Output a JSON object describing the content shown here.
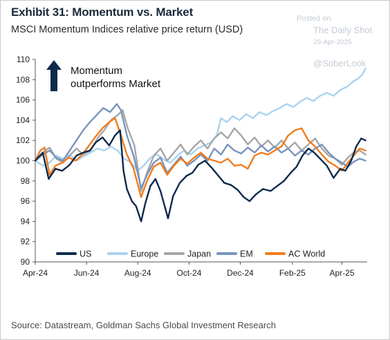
{
  "header": {
    "title": "Exhibit 31: Momentum vs. Market",
    "subtitle": "MSCI Momentum Indices relative price return (USD)"
  },
  "watermark": {
    "posted_on": "Posted on",
    "site": "The Daily Shot",
    "date": "29-Apr-2025",
    "handle": "@SoberLook"
  },
  "footer": {
    "source": "Source: Datastream, Goldman Sachs Global Investment Research"
  },
  "chart_data": {
    "type": "line",
    "ylim": [
      90,
      110
    ],
    "yticks": [
      90,
      92,
      94,
      96,
      98,
      100,
      102,
      104,
      106,
      108,
      110
    ],
    "xlim": [
      "2024-04-01",
      "2025-05-01"
    ],
    "xticks": [
      {
        "date": "2024-04-01",
        "label": "Apr-24"
      },
      {
        "date": "2024-06-01",
        "label": "Jun-24"
      },
      {
        "date": "2024-08-01",
        "label": "Aug-24"
      },
      {
        "date": "2024-10-01",
        "label": "Oct-24"
      },
      {
        "date": "2024-12-01",
        "label": "Dec-24"
      },
      {
        "date": "2025-02-01",
        "label": "Feb-25"
      },
      {
        "date": "2025-04-01",
        "label": "Apr-25"
      }
    ],
    "annotation": {
      "line1": "Momentum",
      "line2": "outperforms  Market",
      "arrow_color": "#0d2a4d"
    },
    "legend_position": "bottom",
    "series": [
      {
        "name": "US",
        "color": "#0d2a4d",
        "points": [
          [
            "2024-04-01",
            100.0
          ],
          [
            "2024-04-10",
            100.8
          ],
          [
            "2024-04-17",
            98.2
          ],
          [
            "2024-04-25",
            99.2
          ],
          [
            "2024-05-03",
            99.0
          ],
          [
            "2024-05-12",
            99.6
          ],
          [
            "2024-05-20",
            100.5
          ],
          [
            "2024-05-28",
            100.8
          ],
          [
            "2024-06-05",
            101.0
          ],
          [
            "2024-06-12",
            101.8
          ],
          [
            "2024-06-20",
            102.3
          ],
          [
            "2024-06-28",
            101.5
          ],
          [
            "2024-07-05",
            102.5
          ],
          [
            "2024-07-11",
            103.0
          ],
          [
            "2024-07-15",
            99.0
          ],
          [
            "2024-07-19",
            97.2
          ],
          [
            "2024-07-25",
            96.0
          ],
          [
            "2024-07-30",
            95.5
          ],
          [
            "2024-08-05",
            94.0
          ],
          [
            "2024-08-10",
            95.8
          ],
          [
            "2024-08-16",
            97.5
          ],
          [
            "2024-08-22",
            98.2
          ],
          [
            "2024-08-28",
            97.0
          ],
          [
            "2024-09-03",
            95.2
          ],
          [
            "2024-09-06",
            94.3
          ],
          [
            "2024-09-12",
            96.5
          ],
          [
            "2024-09-20",
            97.8
          ],
          [
            "2024-09-28",
            98.5
          ],
          [
            "2024-10-05",
            98.8
          ],
          [
            "2024-10-12",
            99.6
          ],
          [
            "2024-10-20",
            100.0
          ],
          [
            "2024-10-28",
            99.3
          ],
          [
            "2024-11-05",
            98.5
          ],
          [
            "2024-11-12",
            97.8
          ],
          [
            "2024-11-20",
            97.6
          ],
          [
            "2024-11-28",
            97.1
          ],
          [
            "2024-12-05",
            96.4
          ],
          [
            "2024-12-12",
            96.0
          ],
          [
            "2024-12-20",
            96.7
          ],
          [
            "2024-12-28",
            97.2
          ],
          [
            "2025-01-06",
            97.0
          ],
          [
            "2025-01-14",
            97.5
          ],
          [
            "2025-01-22",
            98.0
          ],
          [
            "2025-01-30",
            98.8
          ],
          [
            "2025-02-06",
            99.4
          ],
          [
            "2025-02-13",
            100.5
          ],
          [
            "2025-02-20",
            101.2
          ],
          [
            "2025-02-27",
            100.8
          ],
          [
            "2025-03-06",
            100.2
          ],
          [
            "2025-03-14",
            99.5
          ],
          [
            "2025-03-22",
            98.3
          ],
          [
            "2025-03-30",
            99.2
          ],
          [
            "2025-04-05",
            99.0
          ],
          [
            "2025-04-12",
            100.0
          ],
          [
            "2025-04-18",
            101.4
          ],
          [
            "2025-04-24",
            102.2
          ],
          [
            "2025-04-29",
            102.0
          ]
        ]
      },
      {
        "name": "Europe",
        "color": "#a9d3ef",
        "points": [
          [
            "2024-04-01",
            100.0
          ],
          [
            "2024-04-10",
            99.5
          ],
          [
            "2024-04-18",
            99.8
          ],
          [
            "2024-04-26",
            100.5
          ],
          [
            "2024-05-04",
            100.2
          ],
          [
            "2024-05-12",
            100.6
          ],
          [
            "2024-05-20",
            100.0
          ],
          [
            "2024-05-28",
            100.4
          ],
          [
            "2024-06-06",
            100.8
          ],
          [
            "2024-06-14",
            101.2
          ],
          [
            "2024-06-22",
            101.0
          ],
          [
            "2024-06-30",
            101.4
          ],
          [
            "2024-07-08",
            101.0
          ],
          [
            "2024-07-16",
            100.2
          ],
          [
            "2024-07-24",
            99.8
          ],
          [
            "2024-08-01",
            99.0
          ],
          [
            "2024-08-08",
            99.5
          ],
          [
            "2024-08-16",
            100.3
          ],
          [
            "2024-08-24",
            100.6
          ],
          [
            "2024-09-01",
            100.1
          ],
          [
            "2024-09-09",
            99.8
          ],
          [
            "2024-09-17",
            100.5
          ],
          [
            "2024-09-25",
            101.0
          ],
          [
            "2024-10-03",
            100.6
          ],
          [
            "2024-10-11",
            101.2
          ],
          [
            "2024-10-19",
            101.5
          ],
          [
            "2024-10-27",
            101.8
          ],
          [
            "2024-11-03",
            102.5
          ],
          [
            "2024-11-08",
            104.2
          ],
          [
            "2024-11-15",
            103.8
          ],
          [
            "2024-11-22",
            104.4
          ],
          [
            "2024-11-30",
            104.0
          ],
          [
            "2024-12-08",
            104.6
          ],
          [
            "2024-12-16",
            104.2
          ],
          [
            "2024-12-24",
            104.8
          ],
          [
            "2025-01-01",
            104.5
          ],
          [
            "2025-01-09",
            104.9
          ],
          [
            "2025-01-17",
            105.2
          ],
          [
            "2025-01-25",
            105.6
          ],
          [
            "2025-02-02",
            105.3
          ],
          [
            "2025-02-10",
            105.8
          ],
          [
            "2025-02-18",
            106.2
          ],
          [
            "2025-02-26",
            105.9
          ],
          [
            "2025-03-06",
            106.4
          ],
          [
            "2025-03-14",
            106.7
          ],
          [
            "2025-03-22",
            106.4
          ],
          [
            "2025-03-30",
            107.0
          ],
          [
            "2025-04-07",
            107.3
          ],
          [
            "2025-04-14",
            107.8
          ],
          [
            "2025-04-20",
            108.1
          ],
          [
            "2025-04-25",
            108.5
          ],
          [
            "2025-04-29",
            109.1
          ]
        ]
      },
      {
        "name": "Japan",
        "color": "#a6a6a6",
        "points": [
          [
            "2024-04-01",
            100.0
          ],
          [
            "2024-04-10",
            100.8
          ],
          [
            "2024-04-18",
            101.3
          ],
          [
            "2024-04-26",
            100.2
          ],
          [
            "2024-05-04",
            99.8
          ],
          [
            "2024-05-12",
            100.5
          ],
          [
            "2024-05-20",
            101.2
          ],
          [
            "2024-05-28",
            100.6
          ],
          [
            "2024-06-06",
            101.0
          ],
          [
            "2024-06-14",
            102.2
          ],
          [
            "2024-06-22",
            103.0
          ],
          [
            "2024-06-30",
            104.0
          ],
          [
            "2024-07-08",
            104.5
          ],
          [
            "2024-07-14",
            105.0
          ],
          [
            "2024-07-20",
            103.2
          ],
          [
            "2024-07-28",
            101.5
          ],
          [
            "2024-08-05",
            97.0
          ],
          [
            "2024-08-12",
            98.8
          ],
          [
            "2024-08-20",
            100.5
          ],
          [
            "2024-08-28",
            101.2
          ],
          [
            "2024-09-05",
            100.0
          ],
          [
            "2024-09-13",
            100.8
          ],
          [
            "2024-09-21",
            101.6
          ],
          [
            "2024-09-29",
            100.6
          ],
          [
            "2024-10-07",
            101.4
          ],
          [
            "2024-10-15",
            102.0
          ],
          [
            "2024-10-23",
            101.2
          ],
          [
            "2024-10-31",
            102.2
          ],
          [
            "2024-11-08",
            102.8
          ],
          [
            "2024-11-16",
            102.2
          ],
          [
            "2024-11-24",
            103.2
          ],
          [
            "2024-12-02",
            102.5
          ],
          [
            "2024-12-10",
            101.6
          ],
          [
            "2024-12-18",
            102.3
          ],
          [
            "2024-12-26",
            101.4
          ],
          [
            "2025-01-03",
            102.0
          ],
          [
            "2025-01-11",
            101.3
          ],
          [
            "2025-01-19",
            102.0
          ],
          [
            "2025-01-27",
            101.2
          ],
          [
            "2025-02-04",
            101.8
          ],
          [
            "2025-02-12",
            101.0
          ],
          [
            "2025-02-20",
            101.6
          ],
          [
            "2025-02-28",
            102.2
          ],
          [
            "2025-03-08",
            101.2
          ],
          [
            "2025-03-16",
            100.5
          ],
          [
            "2025-03-24",
            100.2
          ],
          [
            "2025-04-01",
            99.6
          ],
          [
            "2025-04-08",
            100.3
          ],
          [
            "2025-04-15",
            100.8
          ],
          [
            "2025-04-22",
            101.0
          ],
          [
            "2025-04-29",
            100.6
          ]
        ]
      },
      {
        "name": "EM",
        "color": "#7894bd",
        "points": [
          [
            "2024-04-01",
            100.0
          ],
          [
            "2024-04-10",
            100.6
          ],
          [
            "2024-04-18",
            101.0
          ],
          [
            "2024-04-26",
            100.3
          ],
          [
            "2024-05-04",
            100.0
          ],
          [
            "2024-05-12",
            101.0
          ],
          [
            "2024-05-20",
            102.0
          ],
          [
            "2024-05-28",
            103.0
          ],
          [
            "2024-06-05",
            103.8
          ],
          [
            "2024-06-13",
            104.5
          ],
          [
            "2024-06-21",
            105.2
          ],
          [
            "2024-06-29",
            104.8
          ],
          [
            "2024-07-07",
            105.6
          ],
          [
            "2024-07-12",
            105.0
          ],
          [
            "2024-07-19",
            102.5
          ],
          [
            "2024-07-27",
            100.5
          ],
          [
            "2024-08-05",
            97.3
          ],
          [
            "2024-08-12",
            98.6
          ],
          [
            "2024-08-20",
            99.8
          ],
          [
            "2024-08-28",
            100.3
          ],
          [
            "2024-09-05",
            98.8
          ],
          [
            "2024-09-13",
            99.6
          ],
          [
            "2024-09-21",
            100.4
          ],
          [
            "2024-09-29",
            99.5
          ],
          [
            "2024-10-07",
            100.0
          ],
          [
            "2024-10-15",
            100.6
          ],
          [
            "2024-10-23",
            100.0
          ],
          [
            "2024-10-31",
            101.2
          ],
          [
            "2024-11-08",
            100.6
          ],
          [
            "2024-11-16",
            101.6
          ],
          [
            "2024-11-24",
            101.0
          ],
          [
            "2024-12-02",
            100.7
          ],
          [
            "2024-12-10",
            101.3
          ],
          [
            "2024-12-18",
            100.8
          ],
          [
            "2024-12-26",
            101.5
          ],
          [
            "2025-01-03",
            100.9
          ],
          [
            "2025-01-11",
            101.4
          ],
          [
            "2025-01-19",
            100.8
          ],
          [
            "2025-01-27",
            101.2
          ],
          [
            "2025-02-04",
            100.5
          ],
          [
            "2025-02-12",
            101.0
          ],
          [
            "2025-02-20",
            100.6
          ],
          [
            "2025-02-28",
            101.2
          ],
          [
            "2025-03-08",
            101.6
          ],
          [
            "2025-03-16",
            100.8
          ],
          [
            "2025-03-24",
            100.2
          ],
          [
            "2025-04-01",
            99.8
          ],
          [
            "2025-04-08",
            99.4
          ],
          [
            "2025-04-15",
            99.9
          ],
          [
            "2025-04-22",
            100.2
          ],
          [
            "2025-04-29",
            100.0
          ]
        ]
      },
      {
        "name": "AC World",
        "color": "#f27c1c",
        "points": [
          [
            "2024-04-01",
            100.0
          ],
          [
            "2024-04-07",
            101.0
          ],
          [
            "2024-04-12",
            101.3
          ],
          [
            "2024-04-18",
            98.6
          ],
          [
            "2024-04-25",
            99.5
          ],
          [
            "2024-05-03",
            99.8
          ],
          [
            "2024-05-11",
            100.3
          ],
          [
            "2024-05-19",
            100.0
          ],
          [
            "2024-05-27",
            100.6
          ],
          [
            "2024-06-04",
            101.5
          ],
          [
            "2024-06-12",
            102.4
          ],
          [
            "2024-06-20",
            103.2
          ],
          [
            "2024-06-28",
            103.8
          ],
          [
            "2024-07-05",
            104.2
          ],
          [
            "2024-07-12",
            102.5
          ],
          [
            "2024-07-19",
            100.6
          ],
          [
            "2024-07-27",
            99.2
          ],
          [
            "2024-08-05",
            96.4
          ],
          [
            "2024-08-12",
            98.0
          ],
          [
            "2024-08-20",
            99.4
          ],
          [
            "2024-08-28",
            99.8
          ],
          [
            "2024-09-05",
            98.6
          ],
          [
            "2024-09-13",
            99.5
          ],
          [
            "2024-09-21",
            100.2
          ],
          [
            "2024-09-29",
            99.7
          ],
          [
            "2024-10-07",
            100.3
          ],
          [
            "2024-10-15",
            100.8
          ],
          [
            "2024-10-23",
            100.2
          ],
          [
            "2024-10-31",
            100.0
          ],
          [
            "2024-11-08",
            99.8
          ],
          [
            "2024-11-16",
            100.2
          ],
          [
            "2024-11-24",
            99.5
          ],
          [
            "2024-12-02",
            99.6
          ],
          [
            "2024-12-10",
            99.2
          ],
          [
            "2024-12-18",
            100.5
          ],
          [
            "2024-12-26",
            100.8
          ],
          [
            "2025-01-03",
            100.6
          ],
          [
            "2025-01-11",
            101.0
          ],
          [
            "2025-01-19",
            101.4
          ],
          [
            "2025-01-27",
            102.5
          ],
          [
            "2025-02-04",
            103.0
          ],
          [
            "2025-02-12",
            103.2
          ],
          [
            "2025-02-20",
            102.0
          ],
          [
            "2025-02-28",
            101.4
          ],
          [
            "2025-03-08",
            100.6
          ],
          [
            "2025-03-16",
            99.9
          ],
          [
            "2025-03-24",
            99.5
          ],
          [
            "2025-04-01",
            99.0
          ],
          [
            "2025-04-08",
            99.8
          ],
          [
            "2025-04-15",
            100.5
          ],
          [
            "2025-04-22",
            101.2
          ],
          [
            "2025-04-29",
            101.0
          ]
        ]
      }
    ]
  }
}
